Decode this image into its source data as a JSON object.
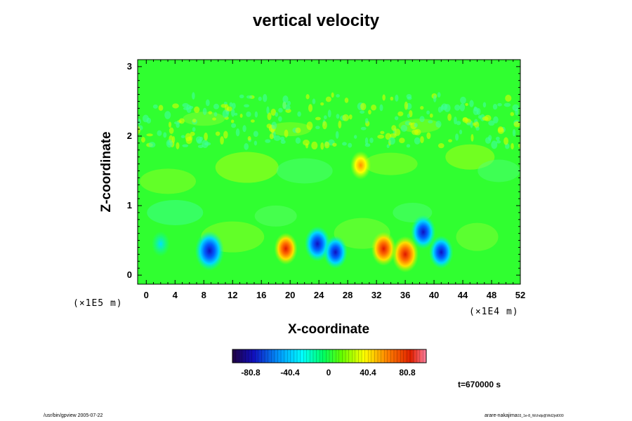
{
  "chart_data": {
    "type": "heatmap",
    "title": "vertical velocity",
    "xlabel": "X-coordinate",
    "ylabel": "Z-coordinate",
    "x_unit_label": "(×1E4 m)",
    "y_unit_label": "(×1E5 m)",
    "xlim": [
      -1.2,
      52
    ],
    "ylim": [
      -0.13,
      3.1
    ],
    "x_ticks": [
      "0",
      "4",
      "8",
      "12",
      "16",
      "20",
      "24",
      "28",
      "32",
      "36",
      "40",
      "44",
      "48",
      "52"
    ],
    "y_ticks": [
      "0",
      "1",
      "2",
      "3"
    ],
    "colorbar": {
      "range": [
        -101,
        101
      ],
      "tick_labels": [
        "-80.8",
        "-40.4",
        "0",
        "40.4",
        "80.8"
      ],
      "colormap": [
        "#200040",
        "#1010c0",
        "#00a0ff",
        "#00ffff",
        "#00ff60",
        "#60ff00",
        "#ffff00",
        "#ff8000",
        "#e02000",
        "#ff80a0"
      ]
    },
    "background_color": "#30ff30",
    "features": [
      {
        "x": 8.8,
        "z": 0.35,
        "w": -90,
        "shape": "cell"
      },
      {
        "x": 19.4,
        "z": 0.38,
        "w": 55,
        "shape": "cell"
      },
      {
        "x": 23.8,
        "z": 0.45,
        "w": -70,
        "shape": "cell"
      },
      {
        "x": 26.3,
        "z": 0.33,
        "w": -60,
        "shape": "cell"
      },
      {
        "x": 33.0,
        "z": 0.38,
        "w": 65,
        "shape": "cell"
      },
      {
        "x": 36.0,
        "z": 0.3,
        "w": 75,
        "shape": "cell"
      },
      {
        "x": 38.5,
        "z": 0.62,
        "w": -65,
        "shape": "cell"
      },
      {
        "x": 41.0,
        "z": 0.33,
        "w": -60,
        "shape": "cell"
      },
      {
        "x": 29.8,
        "z": 1.58,
        "w": 40,
        "shape": "cell"
      },
      {
        "x": 2.0,
        "z": 0.45,
        "w": -25,
        "shape": "cell"
      }
    ],
    "time_label": "t=670000 s"
  },
  "footer": {
    "left": "/usr/bin/gpview 2005-07-22",
    "right_main": "arare-nakajima",
    "right_sub": "03_1e-8_Wchdp@Wd2jrd000"
  }
}
